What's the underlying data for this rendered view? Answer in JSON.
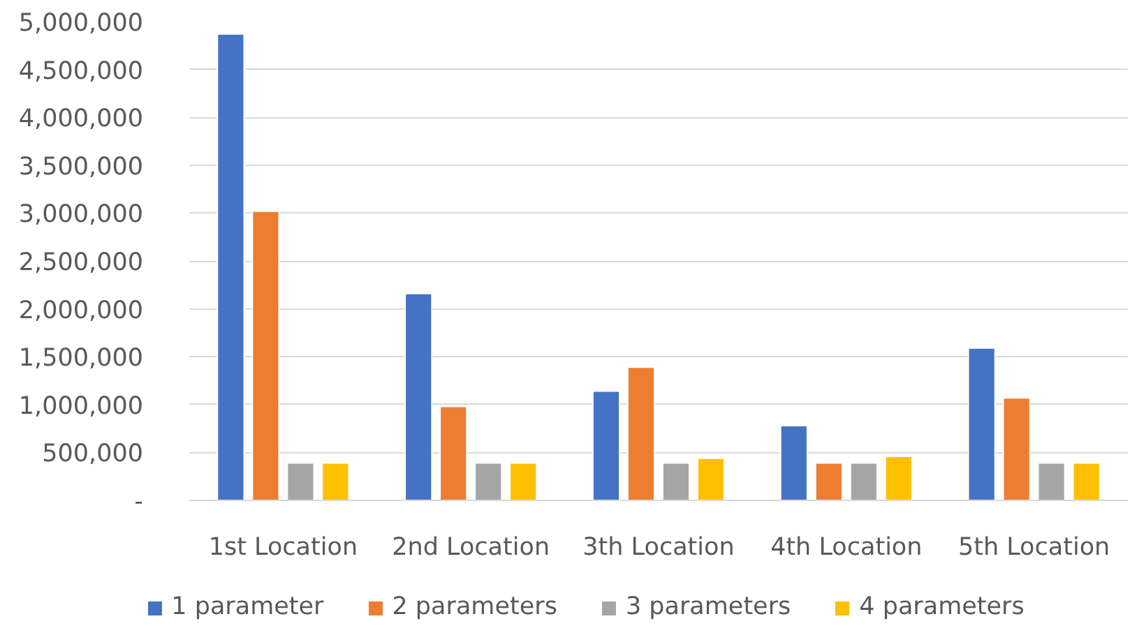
{
  "chart_data": {
    "type": "bar",
    "categories": [
      "1st Location",
      "2nd Location",
      "3th Location",
      "4th Location",
      "5th Location"
    ],
    "series": [
      {
        "name": "1 parameter",
        "color": "#4472c4",
        "values": [
          4870000,
          2160000,
          1140000,
          780000,
          1590000
        ]
      },
      {
        "name": "2 parameters",
        "color": "#ed7d31",
        "values": [
          3020000,
          980000,
          1390000,
          390000,
          1070000
        ]
      },
      {
        "name": "3 parameters",
        "color": "#a5a5a5",
        "values": [
          390000,
          390000,
          390000,
          390000,
          390000
        ]
      },
      {
        "name": "4 parameters",
        "color": "#ffc000",
        "values": [
          390000,
          390000,
          440000,
          460000,
          390000
        ]
      }
    ],
    "ylim": [
      0,
      5000000
    ],
    "yticks": [
      {
        "value": 0,
        "label": "-"
      },
      {
        "value": 500000,
        "label": "500,000"
      },
      {
        "value": 1000000,
        "label": "1,000,000"
      },
      {
        "value": 1500000,
        "label": "1,500,000"
      },
      {
        "value": 2000000,
        "label": "2,000,000"
      },
      {
        "value": 2500000,
        "label": "2,500,000"
      },
      {
        "value": 3000000,
        "label": "3,000,000"
      },
      {
        "value": 3500000,
        "label": "3,500,000"
      },
      {
        "value": 4000000,
        "label": "4,000,000"
      },
      {
        "value": 4500000,
        "label": "4,500,000"
      },
      {
        "value": 5000000,
        "label": "5,000,000"
      }
    ],
    "grid": "y",
    "legend": "bottom"
  }
}
